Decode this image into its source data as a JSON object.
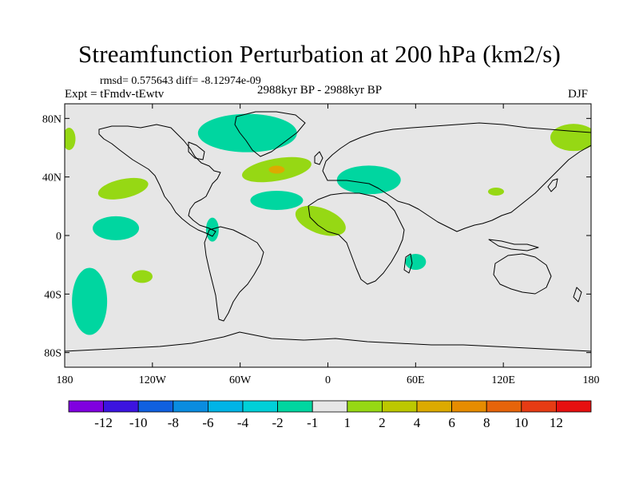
{
  "title": "Streamfunction Perturbation at 200 hPa (km2/s)",
  "stats": "rmsd= 0.575643 diff= -8.12974e-09",
  "experiment": "Expt = tFmdv-tEwtv",
  "period": "2988kyr BP - 2988kyr BP",
  "season": "DJF",
  "map_data": {
    "type": "contour-map",
    "projection": "cylindrical-equidistant",
    "lon_range": [
      -180,
      180
    ],
    "lat_range": [
      -90,
      90
    ],
    "lon_ticks": [
      {
        "value": -180,
        "label": "180"
      },
      {
        "value": -120,
        "label": "120W"
      },
      {
        "value": -60,
        "label": "60W"
      },
      {
        "value": 0,
        "label": "0"
      },
      {
        "value": 60,
        "label": "60E"
      },
      {
        "value": 120,
        "label": "120E"
      },
      {
        "value": 180,
        "label": "180"
      }
    ],
    "lat_ticks": [
      {
        "value": 80,
        "label": "80N"
      },
      {
        "value": 40,
        "label": "40N"
      },
      {
        "value": 0,
        "label": "0"
      },
      {
        "value": -40,
        "label": "40S"
      },
      {
        "value": -80,
        "label": "80S"
      }
    ],
    "anomalies": [
      {
        "name": "north-atlantic-high-lat",
        "lon": -55,
        "lat": 70,
        "level": "-2"
      },
      {
        "name": "north-atlantic-mid-lat",
        "lon": -35,
        "lat": 45,
        "level": "2"
      },
      {
        "name": "north-atlantic-core",
        "lon": -35,
        "lat": 45,
        "level": "4"
      },
      {
        "name": "north-pacific",
        "lon": -140,
        "lat": 32,
        "level": "2"
      },
      {
        "name": "subtropical-atlantic",
        "lon": -35,
        "lat": 24,
        "level": "-2"
      },
      {
        "name": "tropical-pacific-east",
        "lon": -145,
        "lat": 5,
        "level": "-2"
      },
      {
        "name": "panama",
        "lon": -79,
        "lat": 4,
        "level": "-2"
      },
      {
        "name": "mediterranean",
        "lon": 28,
        "lat": 38,
        "level": "-2"
      },
      {
        "name": "west-africa",
        "lon": -5,
        "lat": 10,
        "level": "2"
      },
      {
        "name": "east-asia",
        "lon": 115,
        "lat": 30,
        "level": "2"
      },
      {
        "name": "siberia-east",
        "lon": 168,
        "lat": 67,
        "level": "2"
      },
      {
        "name": "dateline-arctic-west",
        "lon": -177,
        "lat": 66,
        "level": "2"
      },
      {
        "name": "south-africa",
        "lon": 60,
        "lat": -18,
        "level": "-2"
      },
      {
        "name": "south-pacific-west",
        "lon": -163,
        "lat": -45,
        "level": "-2"
      },
      {
        "name": "south-pacific-small",
        "lon": -127,
        "lat": -28,
        "level": "2"
      }
    ]
  },
  "colorbar": {
    "colors": [
      "#8000e0",
      "#3c14e0",
      "#1060e0",
      "#0a8ce0",
      "#00b4e6",
      "#00d0d8",
      "#00d6a0",
      "#e6e6e6",
      "#96d814",
      "#bcc800",
      "#dcaa00",
      "#e68c00",
      "#e6640a",
      "#e63c14",
      "#e61010"
    ],
    "labels": [
      "-12",
      "-10",
      "-8",
      "-6",
      "-4",
      "-2",
      "-1",
      "1",
      "2",
      "4",
      "6",
      "8",
      "10",
      "12"
    ],
    "level_colors": {
      "-2": "#00d6a0",
      "2": "#96d814",
      "4": "#dcaa00"
    }
  },
  "ocean_color": "#e6e6e6"
}
